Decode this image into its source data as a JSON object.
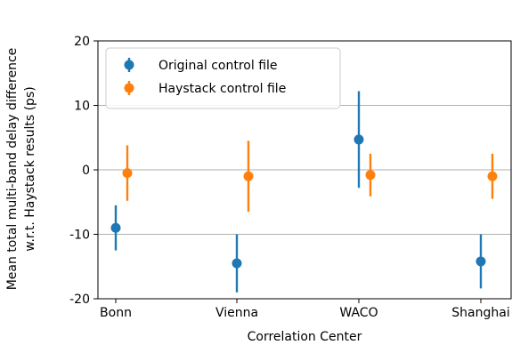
{
  "chart_data": {
    "type": "scatter",
    "title": "",
    "xlabel": "Correlation Center",
    "ylabel_lines": [
      "Mean total multi-band delay difference",
      "w.r.t. Haystack results (ps)"
    ],
    "categories": [
      "Bonn",
      "Vienna",
      "WACO",
      "Shanghai"
    ],
    "ylim": [
      -20,
      20
    ],
    "yticks": [
      -20,
      -10,
      0,
      10,
      20
    ],
    "grid": "horizontal",
    "legend_position": "top-left",
    "series": [
      {
        "name": "Original control file",
        "color": "#1f77b4",
        "values": [
          -9.0,
          -14.5,
          4.7,
          -14.2
        ],
        "errors": [
          3.5,
          4.5,
          7.5,
          4.2
        ]
      },
      {
        "name": "Haystack control file",
        "color": "#ff7f0e",
        "values": [
          -0.5,
          -1.0,
          -0.8,
          -1.0
        ],
        "errors": [
          4.3,
          5.5,
          3.3,
          3.5
        ]
      }
    ]
  }
}
